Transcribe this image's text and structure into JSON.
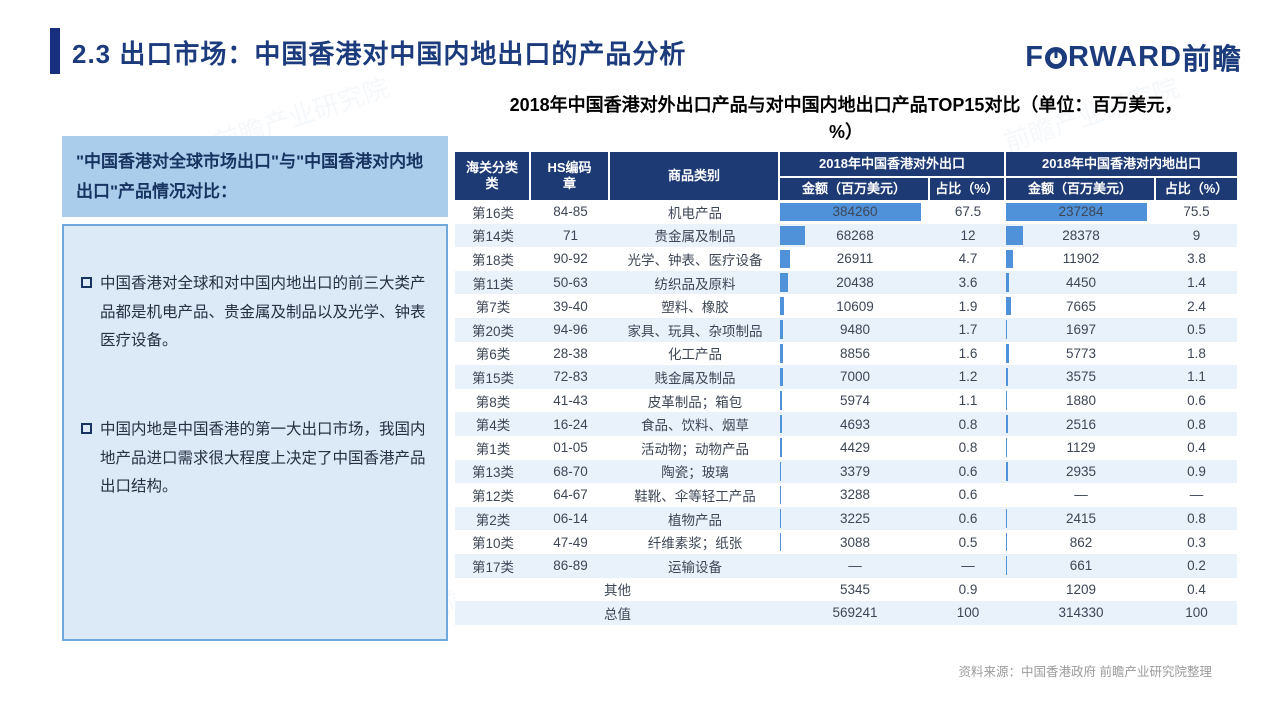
{
  "page": {
    "title": "2.3 出口市场：中国香港对中国内地出口的产品分析",
    "logo": {
      "pre": "F",
      "post": "RWARD",
      "cn": "前瞻"
    },
    "source_note": "资料来源：中国香港政府  前瞻产业研究院整理",
    "watermark": "前瞻产业研究院"
  },
  "sidebar": {
    "heading": "\"中国香港对全球市场出口\"与\"中国香港对内地出口\"产品情况对比：",
    "bullets": [
      "中国香港对全球和对中国内地出口的前三大类产品都是机电产品、贵金属及制品以及光学、钟表医疗设备。",
      "中国内地是中国香港的第一大出口市场，我国内地产品进口需求很大程度上决定了中国香港产品出口结构。"
    ]
  },
  "table": {
    "title_line1": "2018年中国香港对外出口产品与对中国内地出口产品TOP15对比（单位：百万美元，",
    "title_line2": "%）",
    "header": {
      "col_category": "海关分类\n类",
      "col_hs": "HS编码\n章",
      "col_product": "商品类别",
      "group_world": "2018年中国香港对外出口",
      "group_mainland": "2018年中国香港对内地出口",
      "sub_amount": "金额（百万美元）",
      "sub_share": "占比（%）"
    },
    "rows": [
      {
        "category": "第16类",
        "hs": "84-85",
        "product": "机电产品",
        "world_amount": "384260",
        "world_share": "67.5",
        "mainland_amount": "237284",
        "mainland_share": "75.5"
      },
      {
        "category": "第14类",
        "hs": "71",
        "product": "贵金属及制品",
        "world_amount": "68268",
        "world_share": "12",
        "mainland_amount": "28378",
        "mainland_share": "9"
      },
      {
        "category": "第18类",
        "hs": "90-92",
        "product": "光学、钟表、医疗设备",
        "world_amount": "26911",
        "world_share": "4.7",
        "mainland_amount": "11902",
        "mainland_share": "3.8"
      },
      {
        "category": "第11类",
        "hs": "50-63",
        "product": "纺织品及原料",
        "world_amount": "20438",
        "world_share": "3.6",
        "mainland_amount": "4450",
        "mainland_share": "1.4"
      },
      {
        "category": "第7类",
        "hs": "39-40",
        "product": "塑料、橡胶",
        "world_amount": "10609",
        "world_share": "1.9",
        "mainland_amount": "7665",
        "mainland_share": "2.4"
      },
      {
        "category": "第20类",
        "hs": "94-96",
        "product": "家具、玩具、杂项制品",
        "world_amount": "9480",
        "world_share": "1.7",
        "mainland_amount": "1697",
        "mainland_share": "0.5"
      },
      {
        "category": "第6类",
        "hs": "28-38",
        "product": "化工产品",
        "world_amount": "8856",
        "world_share": "1.6",
        "mainland_amount": "5773",
        "mainland_share": "1.8"
      },
      {
        "category": "第15类",
        "hs": "72-83",
        "product": "贱金属及制品",
        "world_amount": "7000",
        "world_share": "1.2",
        "mainland_amount": "3575",
        "mainland_share": "1.1"
      },
      {
        "category": "第8类",
        "hs": "41-43",
        "product": "皮革制品；箱包",
        "world_amount": "5974",
        "world_share": "1.1",
        "mainland_amount": "1880",
        "mainland_share": "0.6"
      },
      {
        "category": "第4类",
        "hs": "16-24",
        "product": "食品、饮料、烟草",
        "world_amount": "4693",
        "world_share": "0.8",
        "mainland_amount": "2516",
        "mainland_share": "0.8"
      },
      {
        "category": "第1类",
        "hs": "01-05",
        "product": "活动物；动物产品",
        "world_amount": "4429",
        "world_share": "0.8",
        "mainland_amount": "1129",
        "mainland_share": "0.4"
      },
      {
        "category": "第13类",
        "hs": "68-70",
        "product": "陶瓷；玻璃",
        "world_amount": "3379",
        "world_share": "0.6",
        "mainland_amount": "2935",
        "mainland_share": "0.9"
      },
      {
        "category": "第12类",
        "hs": "64-67",
        "product": "鞋靴、伞等轻工产品",
        "world_amount": "3288",
        "world_share": "0.6",
        "mainland_amount": "—",
        "mainland_share": "—"
      },
      {
        "category": "第2类",
        "hs": "06-14",
        "product": "植物产品",
        "world_amount": "3225",
        "world_share": "0.6",
        "mainland_amount": "2415",
        "mainland_share": "0.8"
      },
      {
        "category": "第10类",
        "hs": "47-49",
        "product": "纤维素浆；纸张",
        "world_amount": "3088",
        "world_share": "0.5",
        "mainland_amount": "862",
        "mainland_share": "0.3"
      },
      {
        "category": "第17类",
        "hs": "86-89",
        "product": "运输设备",
        "world_amount": "—",
        "world_share": "—",
        "mainland_amount": "661",
        "mainland_share": "0.2"
      }
    ],
    "summary_rows": [
      {
        "label": "其他",
        "world_amount": "5345",
        "world_share": "0.9",
        "mainland_amount": "1209",
        "mainland_share": "0.4"
      },
      {
        "label": "总值",
        "world_amount": "569241",
        "world_share": "100",
        "mainland_amount": "314330",
        "mainland_share": "100"
      }
    ]
  },
  "colors": {
    "accent": "#16307E",
    "titleblue": "#1B3B7C",
    "headerbg": "#1D3A74",
    "barblue": "#4F92D9",
    "rowalt": "#E9F1FA",
    "sideheadbg": "#A9CDEA",
    "sidepanelbg": "#DCEAF8",
    "sideborder": "#6FA8DC",
    "textdark": "#17335F",
    "footgray": "#9B9B9B",
    "wm": "#7FA3C9"
  }
}
